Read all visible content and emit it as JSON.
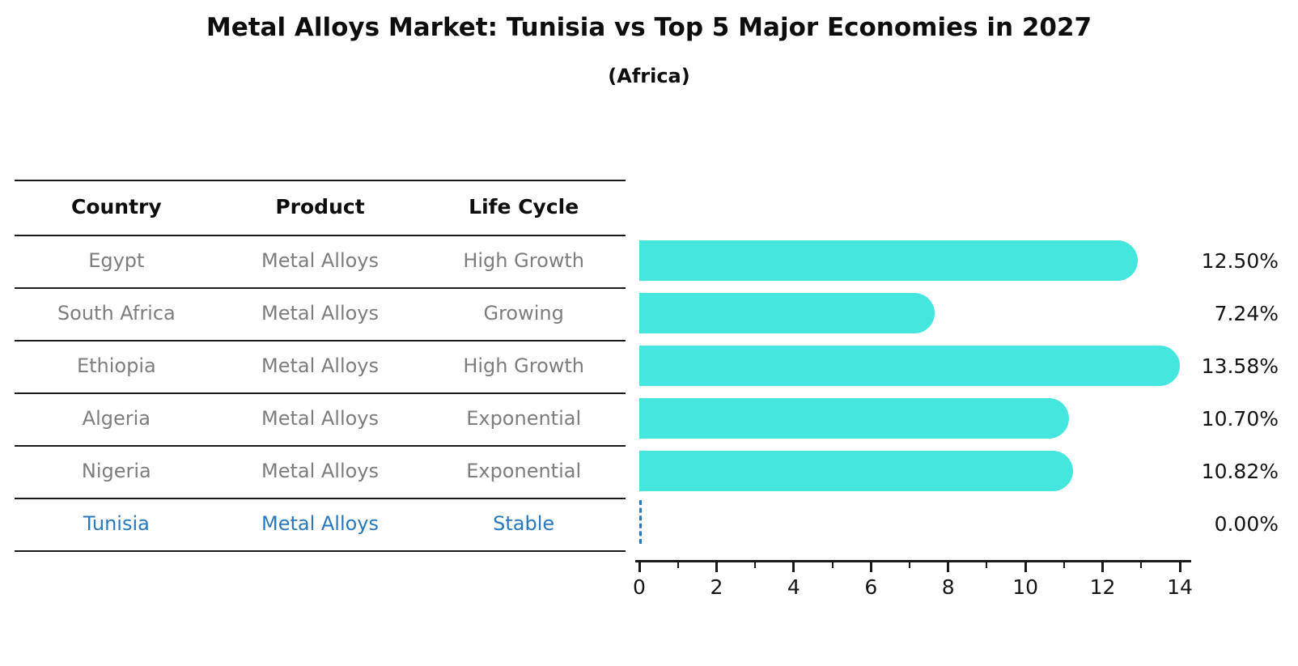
{
  "title": "Metal Alloys Market: Tunisia vs Top 5 Major Economies in 2027",
  "subtitle": "(Africa)",
  "table": {
    "headers": [
      "Country",
      "Product",
      "Life Cycle"
    ],
    "rows": [
      {
        "country": "Egypt",
        "product": "Metal Alloys",
        "life_cycle": "High Growth",
        "highlight": false
      },
      {
        "country": "South Africa",
        "product": "Metal Alloys",
        "life_cycle": "Growing",
        "highlight": false
      },
      {
        "country": "Ethiopia",
        "product": "Metal Alloys",
        "life_cycle": "High Growth",
        "highlight": false
      },
      {
        "country": "Algeria",
        "product": "Metal Alloys",
        "life_cycle": "Exponential",
        "highlight": false
      },
      {
        "country": "Nigeria",
        "product": "Metal Alloys",
        "life_cycle": "Exponential",
        "highlight": true
      }
    ]
  },
  "table_last_row": {
    "country": "Tunisia",
    "product": "Metal Alloys",
    "life_cycle": "Stable"
  },
  "chart_data": {
    "type": "bar",
    "orientation": "horizontal",
    "title": "Metal Alloys Market: Tunisia vs Top 5 Major Economies in 2027",
    "subtitle": "(Africa)",
    "categories": [
      "Egypt",
      "South Africa",
      "Ethiopia",
      "Algeria",
      "Nigeria",
      "Tunisia"
    ],
    "values": [
      12.5,
      7.24,
      13.58,
      10.7,
      10.82,
      0.0
    ],
    "value_labels": [
      "12.50%",
      "7.24%",
      "13.58%",
      "10.70%",
      "10.82%",
      "0.00%"
    ],
    "xlabel": "",
    "ylabel": "",
    "xlim": [
      0,
      14
    ],
    "x_major_ticks": [
      0,
      2,
      4,
      6,
      8,
      10,
      12,
      14
    ],
    "x_minor_ticks": [
      1,
      3,
      5,
      7,
      9,
      11,
      13
    ],
    "grid": false,
    "legend": false,
    "bar_color": "#45E6DE",
    "zero_marker": "dashed-line",
    "zero_marker_color": "#2878be",
    "highlight_text_color": "#2878be"
  }
}
